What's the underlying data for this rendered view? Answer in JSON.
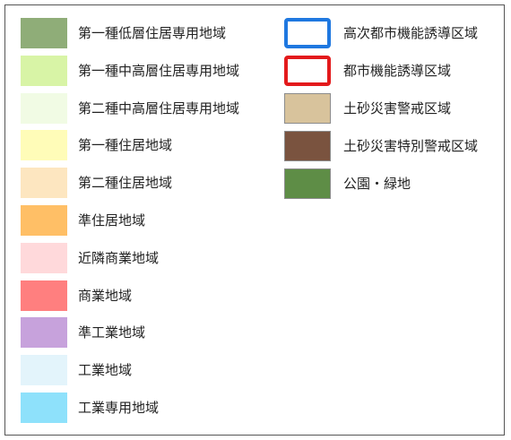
{
  "legend": {
    "left_items": [
      {
        "label": "第一種低層住居専用地域",
        "color": "#8fad78"
      },
      {
        "label": "第一種中高層住居専用地域",
        "color": "#d8f4a6"
      },
      {
        "label": "第二種中高層住居専用地域",
        "color": "#f1fbe4"
      },
      {
        "label": "第一種住居地域",
        "color": "#fffcb8"
      },
      {
        "label": "第二種住居地域",
        "color": "#fde6c0"
      },
      {
        "label": "準住居地域",
        "color": "#ffbf66"
      },
      {
        "label": "近隣商業地域",
        "color": "#ffd9db"
      },
      {
        "label": "商業地域",
        "color": "#ff7f7f"
      },
      {
        "label": "準工業地域",
        "color": "#c7a2dc"
      },
      {
        "label": "工業地域",
        "color": "#e3f4fb"
      },
      {
        "label": "工業専用地域",
        "color": "#8ee1fb"
      }
    ],
    "right_items": [
      {
        "label": "高次都市機能誘導区域",
        "style": "outline",
        "color": "#1f78e0"
      },
      {
        "label": "都市機能誘導区域",
        "style": "outline",
        "color": "#e31a1c"
      },
      {
        "label": "土砂災害警戒区域",
        "style": "fill",
        "color": "#d8c39c"
      },
      {
        "label": "土砂災害特別警戒区域",
        "style": "fill",
        "color": "#7a533f"
      },
      {
        "label": "公園・緑地",
        "style": "fill",
        "color": "#5e8d46"
      }
    ]
  }
}
